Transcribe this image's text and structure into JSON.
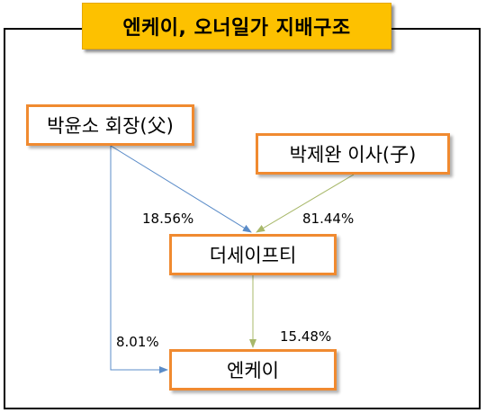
{
  "title": "엔케이, 오너일가 지배구조",
  "nodes": {
    "park_yoonso": "박윤소 회장(父)",
    "park_jewan": "박제완 이사(子)",
    "the_spt": "더세이프티",
    "nk": "엔케이"
  },
  "edges": [
    {
      "from": "park_yoonso",
      "to": "the_spt",
      "label": "18.56%",
      "color": "#5b8cc8"
    },
    {
      "from": "park_jewan",
      "to": "the_spt",
      "label": "81.44%",
      "color": "#a8b86a"
    },
    {
      "from": "park_yoonso",
      "to": "nk",
      "label": "8.01%",
      "color": "#5b8cc8"
    },
    {
      "from": "the_spt",
      "to": "nk",
      "label": "15.48%",
      "color": "#a8b86a"
    }
  ],
  "colors": {
    "title_bg": "#fdc100",
    "node_border": "#f08a30",
    "frame": "#000000"
  }
}
